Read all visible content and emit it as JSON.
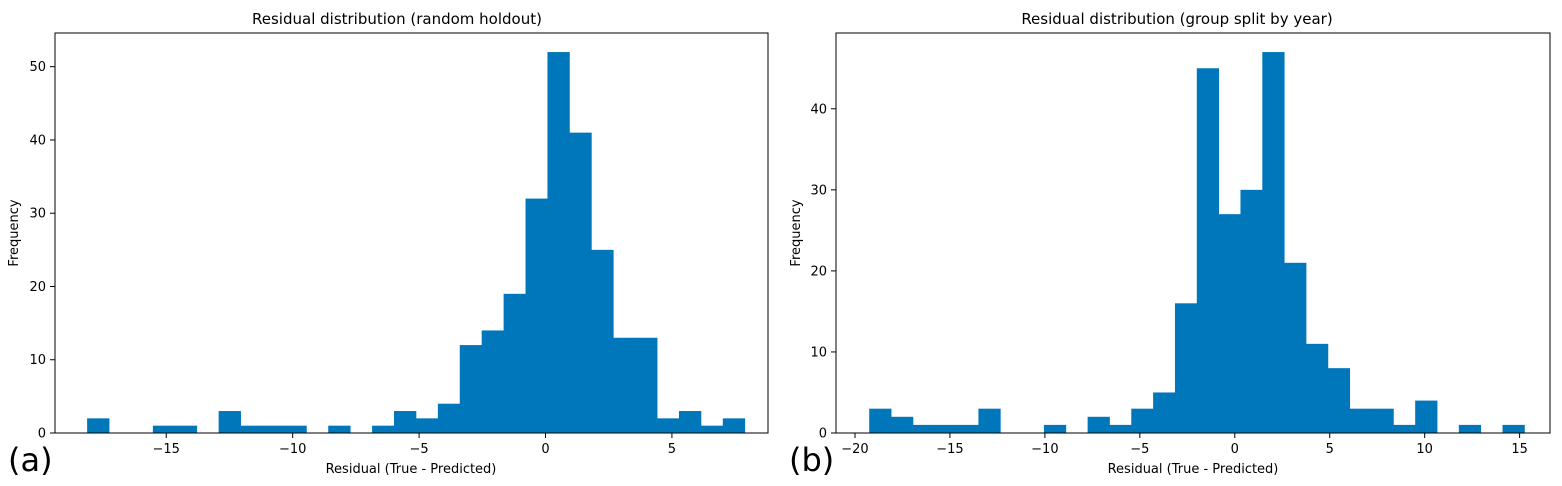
{
  "chart_data": [
    {
      "type": "bar",
      "panel_label": "(a)",
      "title": "Residual distribution (random holdout)",
      "xlabel": "Residual (True - Predicted)",
      "ylabel": "Frequency",
      "xlim": [
        -19.4,
        8.8
      ],
      "ylim": [
        0,
        54.6
      ],
      "xticks": [
        -15,
        -10,
        -5,
        0,
        5
      ],
      "xtick_labels": [
        "−15",
        "−10",
        "−5",
        "0",
        "5"
      ],
      "yticks": [
        0,
        10,
        20,
        30,
        40,
        50
      ],
      "ytick_labels": [
        "0",
        "10",
        "20",
        "30",
        "40",
        "50"
      ],
      "bin_start": -18.13,
      "bin_width": 0.867,
      "values": [
        2,
        0,
        0,
        1,
        1,
        0,
        3,
        1,
        1,
        1,
        0,
        1,
        0,
        1,
        3,
        2,
        4,
        12,
        14,
        19,
        32,
        52,
        41,
        25,
        13,
        13,
        2,
        3,
        1,
        2
      ],
      "color": "#0077bb",
      "grid": false
    },
    {
      "type": "bar",
      "panel_label": "(b)",
      "title": "Residual distribution (group split by year)",
      "xlabel": "Residual (True - Predicted)",
      "ylabel": "Frequency",
      "xlim": [
        -21,
        16.6
      ],
      "ylim": [
        0,
        49.35
      ],
      "xticks": [
        -20,
        -15,
        -10,
        -5,
        0,
        5,
        10,
        15
      ],
      "xtick_labels": [
        "−20",
        "−15",
        "−10",
        "−5",
        "0",
        "5",
        "10",
        "15"
      ],
      "yticks": [
        0,
        10,
        20,
        30,
        40
      ],
      "ytick_labels": [
        "0",
        "10",
        "20",
        "30",
        "40"
      ],
      "bin_start": -19.25,
      "bin_width": 1.15,
      "values": [
        3,
        2,
        1,
        1,
        1,
        3,
        0,
        0,
        1,
        0,
        2,
        1,
        3,
        5,
        16,
        45,
        27,
        30,
        47,
        21,
        11,
        8,
        3,
        3,
        1,
        4,
        0,
        1,
        0,
        1
      ],
      "color": "#0077bb",
      "grid": false
    }
  ]
}
